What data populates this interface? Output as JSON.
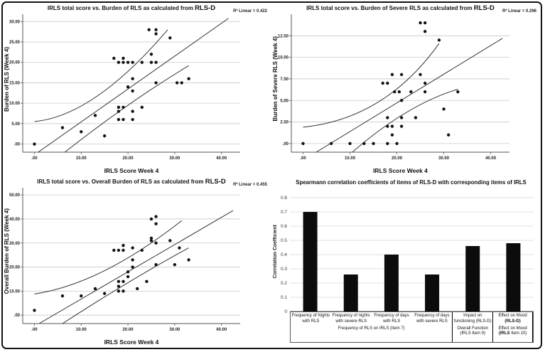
{
  "colors": {
    "point": "#141414",
    "bar": "#0c0c0c",
    "grid_scatter": "#c9c9c9",
    "grid_bar": "#d8d8d8",
    "axis": "#555555",
    "line": "#333333",
    "frame_border": "#131313"
  },
  "chart_data": [
    {
      "type": "scatter",
      "title_pre": "IRLS total score vs. Burden of RLS as calculated from ",
      "title_em": "RLS-D",
      "annotation": "R² Linear = 0.422",
      "xlabel": "IRLS Score Week 4",
      "ylabel": "Burden of RLS (Week 4)",
      "xlim": [
        -2.5,
        44
      ],
      "ylim": [
        -2,
        31.8
      ],
      "xticks": [
        0,
        10,
        20,
        30,
        40
      ],
      "xtick_labels": [
        ".00",
        "10.00",
        "20.00",
        "30.00",
        "40.00"
      ],
      "yticks": [
        0,
        5,
        10,
        15,
        20,
        25,
        30
      ],
      "ytick_labels": [
        ".00",
        "5.00",
        "10.00",
        "15.00",
        "20.00",
        "25.00",
        "30.00"
      ],
      "grid": "horizontal",
      "legend": "none",
      "points": [
        [
          0,
          0
        ],
        [
          6,
          4
        ],
        [
          10,
          3
        ],
        [
          13,
          7
        ],
        [
          15,
          2
        ],
        [
          17,
          21
        ],
        [
          19,
          21
        ],
        [
          18,
          20
        ],
        [
          19,
          20
        ],
        [
          20,
          20
        ],
        [
          21,
          20
        ],
        [
          23,
          20
        ],
        [
          25,
          20
        ],
        [
          26,
          20
        ],
        [
          20,
          14
        ],
        [
          21,
          16
        ],
        [
          21,
          13
        ],
        [
          18,
          9
        ],
        [
          19,
          9
        ],
        [
          23,
          9
        ],
        [
          18,
          8
        ],
        [
          21,
          8
        ],
        [
          18,
          6
        ],
        [
          19,
          6
        ],
        [
          21,
          6
        ],
        [
          24.5,
          28
        ],
        [
          26,
          28
        ],
        [
          26,
          27
        ],
        [
          29,
          26
        ],
        [
          25,
          22
        ],
        [
          26,
          15
        ],
        [
          30.5,
          15
        ],
        [
          31.5,
          15
        ],
        [
          33,
          16
        ]
      ],
      "fit_line": [
        [
          0.8,
          -2
        ],
        [
          41.5,
          30.8
        ]
      ],
      "ci_upper": [
        [
          0,
          5.5
        ],
        [
          13.5,
          11.8
        ],
        [
          28.5,
          28
        ]
      ],
      "ci_lower": [
        [
          6.5,
          -2
        ],
        [
          20,
          9.5
        ],
        [
          33,
          19.2
        ]
      ]
    },
    {
      "type": "scatter",
      "title_pre": "IRLS total score vs. Burden of Severe RLS as calculated from ",
      "title_em": "RLS-D",
      "annotation": "R² Linear = 0.296",
      "xlabel": "IRLS Score Week 4",
      "ylabel": "Burden of Severe RLS (Week 4)",
      "xlim": [
        -2.5,
        44
      ],
      "ylim": [
        -1,
        15
      ],
      "xticks": [
        0,
        10,
        20,
        30,
        40
      ],
      "xtick_labels": [
        ".00",
        "10.00",
        "20.00",
        "30.00",
        "40.00"
      ],
      "yticks": [
        0,
        2.5,
        5,
        7.5,
        10,
        12.5
      ],
      "ytick_labels": [
        ".00",
        "2.50",
        "5.00",
        "7.50",
        "10.00",
        "12.50"
      ],
      "grid": "horizontal",
      "legend": "none",
      "points": [
        [
          0,
          0
        ],
        [
          6,
          0
        ],
        [
          10,
          0
        ],
        [
          13,
          0
        ],
        [
          15,
          0
        ],
        [
          18,
          0
        ],
        [
          20,
          0
        ],
        [
          19,
          1
        ],
        [
          31,
          1
        ],
        [
          18,
          2
        ],
        [
          19,
          2
        ],
        [
          21,
          2
        ],
        [
          18,
          3
        ],
        [
          21,
          3
        ],
        [
          24,
          3
        ],
        [
          30,
          4
        ],
        [
          21,
          5
        ],
        [
          19.5,
          6
        ],
        [
          20.5,
          6
        ],
        [
          23,
          6
        ],
        [
          26,
          6
        ],
        [
          33,
          6
        ],
        [
          17,
          7
        ],
        [
          18,
          7
        ],
        [
          26,
          7
        ],
        [
          19,
          8
        ],
        [
          21,
          8
        ],
        [
          25,
          8
        ],
        [
          29,
          12
        ],
        [
          26,
          13
        ],
        [
          25,
          14
        ],
        [
          26,
          14
        ]
      ],
      "fit_line": [
        [
          2.8,
          -1
        ],
        [
          42.5,
          12.2
        ]
      ],
      "ci_upper": [
        [
          0,
          1.9
        ],
        [
          16,
          4.8
        ],
        [
          29,
          11.6
        ]
      ],
      "ci_lower": [
        [
          10.5,
          -1
        ],
        [
          22,
          3.6
        ],
        [
          33,
          6.3
        ]
      ]
    },
    {
      "type": "scatter",
      "title_pre": "IRLS total score vs. Overall Burden of RLS as calculated from ",
      "title_em": "RLS-D",
      "annotation": "R² Linear = 0.455",
      "xlabel": "IRLS Score Week 4",
      "ylabel": "Overall Burden of RLS (Week 4)",
      "xlim": [
        -2.5,
        44
      ],
      "ylim": [
        -3.5,
        53
      ],
      "xticks": [
        0,
        10,
        20,
        30,
        40
      ],
      "xtick_labels": [
        ".00",
        "10.00",
        "20.00",
        "30.00",
        "40.00"
      ],
      "yticks": [
        0,
        10,
        20,
        30,
        40,
        50
      ],
      "ytick_labels": [
        ".00",
        "10.00",
        "20.00",
        "30.00",
        "40.00",
        "50.00"
      ],
      "grid": "horizontal",
      "legend": "none",
      "points": [
        [
          0,
          2
        ],
        [
          6,
          8
        ],
        [
          10,
          8
        ],
        [
          13,
          11
        ],
        [
          15,
          9
        ],
        [
          18,
          10
        ],
        [
          19,
          10
        ],
        [
          22,
          11
        ],
        [
          18,
          12
        ],
        [
          18,
          14
        ],
        [
          19,
          14
        ],
        [
          24,
          14
        ],
        [
          20,
          16
        ],
        [
          20,
          18
        ],
        [
          21,
          20
        ],
        [
          26,
          21
        ],
        [
          30,
          21
        ],
        [
          21,
          23
        ],
        [
          33,
          23
        ],
        [
          17,
          27
        ],
        [
          18,
          27
        ],
        [
          19,
          27
        ],
        [
          23,
          27
        ],
        [
          21,
          28
        ],
        [
          31,
          28
        ],
        [
          19,
          29
        ],
        [
          26,
          30
        ],
        [
          29,
          31
        ],
        [
          25,
          31
        ],
        [
          25,
          32
        ],
        [
          26,
          38
        ],
        [
          25,
          40
        ],
        [
          26,
          41
        ]
      ],
      "fit_line": [
        [
          1,
          -3.5
        ],
        [
          42.5,
          43.5
        ]
      ],
      "ci_upper": [
        [
          0,
          8.8
        ],
        [
          15,
          18.5
        ],
        [
          31.5,
          39.3
        ]
      ],
      "ci_lower": [
        [
          6,
          -3.5
        ],
        [
          20,
          13.5
        ],
        [
          33,
          28
        ]
      ]
    },
    {
      "type": "bar",
      "title": "Spearmann correlation coefficients of items of RLS-D with corresponding items of IRLS",
      "ylabel": "Correlation Coefficient",
      "xlabel": "",
      "ylim": [
        0,
        0.8
      ],
      "yticks": [
        0,
        0.1,
        0.2,
        0.3,
        0.4,
        0.5,
        0.6,
        0.7,
        0.8
      ],
      "ytick_labels": [
        "0",
        "0.1",
        "0.2",
        "0.3",
        "0.4",
        "0.5",
        "0.6",
        "0.7",
        "0.8"
      ],
      "grid": "horizontal",
      "legend": "none",
      "values": [
        0.7,
        0.26,
        0.4,
        0.26,
        0.46,
        0.48
      ],
      "categories": [
        {
          "pre": "Frequency of Nights with RLS"
        },
        {
          "pre": "Frequency of nights with severe RLS"
        },
        {
          "pre": "Frequency of days with RLS"
        },
        {
          "pre": "Frequency of days with severe RLS"
        },
        {
          "pre": "Impact on functioning (RLS-D)"
        },
        {
          "pre": "Effect on Mood ",
          "bold": "(RLS-D)"
        }
      ],
      "groups": [
        {
          "span": 4,
          "pre": "Frequency of RLS on IRLS (Item 7)"
        },
        {
          "span": 1,
          "pre": "Overall Function (IRLS Item 9)"
        },
        {
          "span": 1,
          "pre": "Effect on Mood ",
          "bold": "(IRLS",
          "post": " Item 10)"
        }
      ]
    }
  ]
}
